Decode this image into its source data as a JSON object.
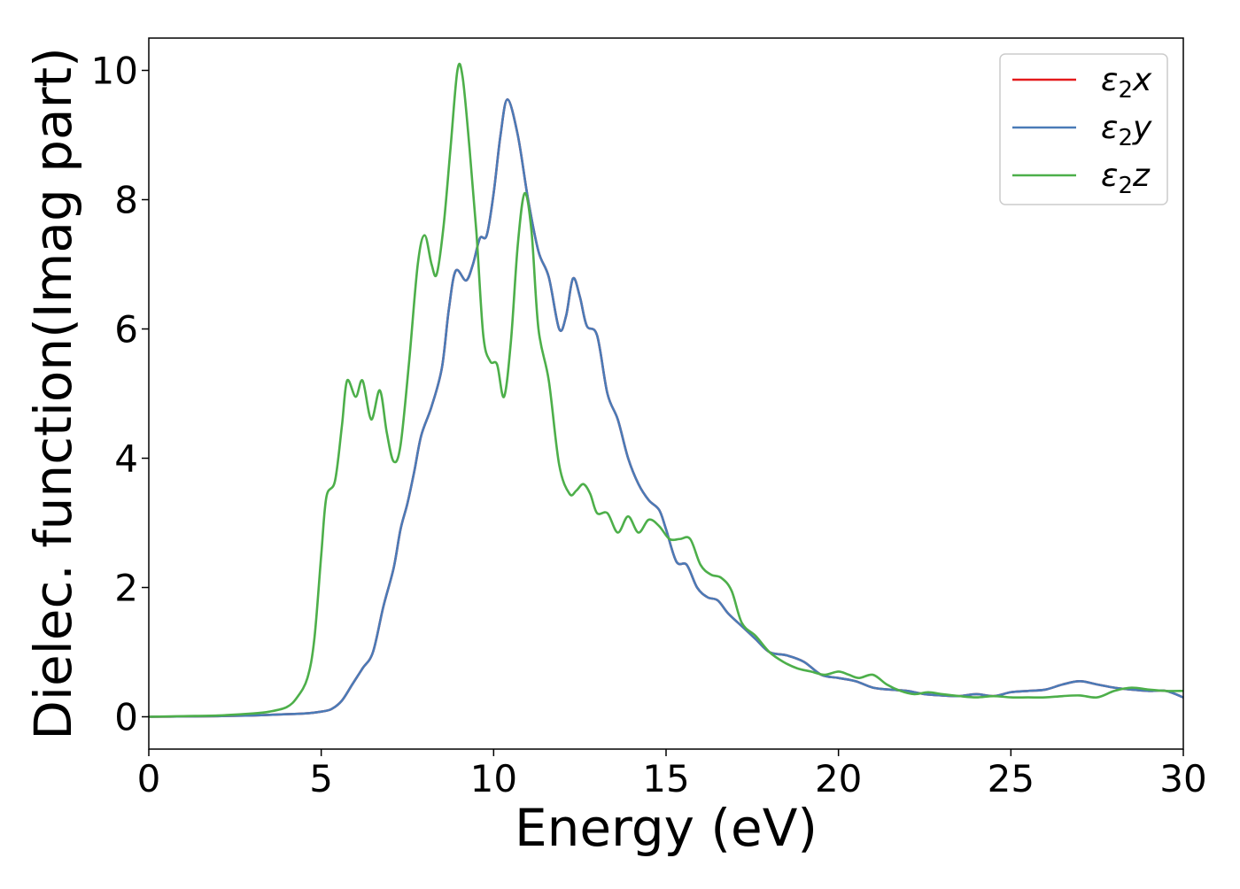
{
  "chart_data": {
    "type": "line",
    "title": "",
    "xlabel": "Energy (eV)",
    "ylabel": "Dielec. function(Imag part)",
    "xlim": [
      0,
      30
    ],
    "ylim": [
      -0.5,
      10.5
    ],
    "xticks": [
      0,
      5,
      10,
      15,
      20,
      25,
      30
    ],
    "yticks": [
      0,
      2,
      4,
      6,
      8,
      10
    ],
    "grid": false,
    "legend_placement": "top-right",
    "series": [
      {
        "name": "ε₂x",
        "legend_main": "ε",
        "legend_sub": "2",
        "legend_tail": "x",
        "color": "#e41a1c",
        "points": [
          [
            0,
            0
          ],
          [
            1,
            0.005
          ],
          [
            2,
            0.01
          ],
          [
            3,
            0.02
          ],
          [
            4,
            0.04
          ],
          [
            4.5,
            0.05
          ],
          [
            5,
            0.08
          ],
          [
            5.3,
            0.12
          ],
          [
            5.6,
            0.25
          ],
          [
            5.9,
            0.5
          ],
          [
            6.2,
            0.75
          ],
          [
            6.5,
            1.0
          ],
          [
            6.8,
            1.7
          ],
          [
            7.1,
            2.3
          ],
          [
            7.3,
            2.9
          ],
          [
            7.5,
            3.3
          ],
          [
            7.7,
            3.8
          ],
          [
            7.9,
            4.35
          ],
          [
            8.2,
            4.8
          ],
          [
            8.5,
            5.4
          ],
          [
            8.7,
            6.3
          ],
          [
            8.9,
            6.9
          ],
          [
            9.2,
            6.75
          ],
          [
            9.4,
            7.0
          ],
          [
            9.6,
            7.4
          ],
          [
            9.8,
            7.45
          ],
          [
            10.0,
            8.1
          ],
          [
            10.2,
            9.0
          ],
          [
            10.4,
            9.55
          ],
          [
            10.7,
            9.0
          ],
          [
            11.0,
            8.0
          ],
          [
            11.3,
            7.2
          ],
          [
            11.6,
            6.8
          ],
          [
            11.9,
            6.0
          ],
          [
            12.1,
            6.2
          ],
          [
            12.3,
            6.78
          ],
          [
            12.5,
            6.5
          ],
          [
            12.7,
            6.05
          ],
          [
            13.0,
            5.9
          ],
          [
            13.3,
            5.0
          ],
          [
            13.6,
            4.6
          ],
          [
            13.9,
            4.0
          ],
          [
            14.2,
            3.6
          ],
          [
            14.5,
            3.35
          ],
          [
            14.8,
            3.2
          ],
          [
            15.0,
            2.9
          ],
          [
            15.3,
            2.4
          ],
          [
            15.6,
            2.35
          ],
          [
            15.9,
            2.0
          ],
          [
            16.2,
            1.85
          ],
          [
            16.5,
            1.8
          ],
          [
            16.8,
            1.6
          ],
          [
            17.2,
            1.4
          ],
          [
            17.6,
            1.2
          ],
          [
            18.0,
            1.0
          ],
          [
            18.5,
            0.95
          ],
          [
            19.0,
            0.85
          ],
          [
            19.5,
            0.65
          ],
          [
            20.0,
            0.6
          ],
          [
            20.5,
            0.55
          ],
          [
            21.0,
            0.45
          ],
          [
            21.5,
            0.42
          ],
          [
            22.0,
            0.4
          ],
          [
            22.5,
            0.35
          ],
          [
            23.0,
            0.33
          ],
          [
            23.5,
            0.32
          ],
          [
            24.0,
            0.35
          ],
          [
            24.5,
            0.32
          ],
          [
            25.0,
            0.38
          ],
          [
            25.5,
            0.4
          ],
          [
            26.0,
            0.42
          ],
          [
            26.5,
            0.5
          ],
          [
            27.0,
            0.55
          ],
          [
            27.5,
            0.5
          ],
          [
            28.0,
            0.45
          ],
          [
            28.5,
            0.42
          ],
          [
            29.0,
            0.4
          ],
          [
            29.5,
            0.4
          ],
          [
            30.0,
            0.3
          ]
        ]
      },
      {
        "name": "ε₂y",
        "legend_main": "ε",
        "legend_sub": "2",
        "legend_tail": "y",
        "color": "#4a7bb7",
        "points": [
          [
            0,
            0
          ],
          [
            1,
            0.005
          ],
          [
            2,
            0.01
          ],
          [
            3,
            0.02
          ],
          [
            4,
            0.04
          ],
          [
            4.5,
            0.05
          ],
          [
            5,
            0.08
          ],
          [
            5.3,
            0.12
          ],
          [
            5.6,
            0.25
          ],
          [
            5.9,
            0.5
          ],
          [
            6.2,
            0.75
          ],
          [
            6.5,
            1.0
          ],
          [
            6.8,
            1.7
          ],
          [
            7.1,
            2.3
          ],
          [
            7.3,
            2.9
          ],
          [
            7.5,
            3.3
          ],
          [
            7.7,
            3.8
          ],
          [
            7.9,
            4.35
          ],
          [
            8.2,
            4.8
          ],
          [
            8.5,
            5.4
          ],
          [
            8.7,
            6.3
          ],
          [
            8.9,
            6.9
          ],
          [
            9.2,
            6.75
          ],
          [
            9.4,
            7.0
          ],
          [
            9.6,
            7.4
          ],
          [
            9.8,
            7.45
          ],
          [
            10.0,
            8.1
          ],
          [
            10.2,
            9.0
          ],
          [
            10.4,
            9.55
          ],
          [
            10.7,
            9.0
          ],
          [
            11.0,
            8.0
          ],
          [
            11.3,
            7.2
          ],
          [
            11.6,
            6.8
          ],
          [
            11.9,
            6.0
          ],
          [
            12.1,
            6.2
          ],
          [
            12.3,
            6.78
          ],
          [
            12.5,
            6.5
          ],
          [
            12.7,
            6.05
          ],
          [
            13.0,
            5.9
          ],
          [
            13.3,
            5.0
          ],
          [
            13.6,
            4.6
          ],
          [
            13.9,
            4.0
          ],
          [
            14.2,
            3.6
          ],
          [
            14.5,
            3.35
          ],
          [
            14.8,
            3.2
          ],
          [
            15.0,
            2.9
          ],
          [
            15.3,
            2.4
          ],
          [
            15.6,
            2.35
          ],
          [
            15.9,
            2.0
          ],
          [
            16.2,
            1.85
          ],
          [
            16.5,
            1.8
          ],
          [
            16.8,
            1.6
          ],
          [
            17.2,
            1.4
          ],
          [
            17.6,
            1.2
          ],
          [
            18.0,
            1.0
          ],
          [
            18.5,
            0.95
          ],
          [
            19.0,
            0.85
          ],
          [
            19.5,
            0.65
          ],
          [
            20.0,
            0.6
          ],
          [
            20.5,
            0.55
          ],
          [
            21.0,
            0.45
          ],
          [
            21.5,
            0.42
          ],
          [
            22.0,
            0.4
          ],
          [
            22.5,
            0.35
          ],
          [
            23.0,
            0.33
          ],
          [
            23.5,
            0.32
          ],
          [
            24.0,
            0.35
          ],
          [
            24.5,
            0.32
          ],
          [
            25.0,
            0.38
          ],
          [
            25.5,
            0.4
          ],
          [
            26.0,
            0.42
          ],
          [
            26.5,
            0.5
          ],
          [
            27.0,
            0.55
          ],
          [
            27.5,
            0.5
          ],
          [
            28.0,
            0.45
          ],
          [
            28.5,
            0.42
          ],
          [
            29.0,
            0.4
          ],
          [
            29.5,
            0.4
          ],
          [
            30.0,
            0.3
          ]
        ]
      },
      {
        "name": "ε₂z",
        "legend_main": "ε",
        "legend_sub": "2",
        "legend_tail": "z",
        "color": "#4daf4a",
        "points": [
          [
            0,
            0
          ],
          [
            1,
            0.01
          ],
          [
            2,
            0.02
          ],
          [
            3,
            0.05
          ],
          [
            3.5,
            0.08
          ],
          [
            4.0,
            0.15
          ],
          [
            4.3,
            0.3
          ],
          [
            4.6,
            0.6
          ],
          [
            4.8,
            1.2
          ],
          [
            5.0,
            2.5
          ],
          [
            5.15,
            3.4
          ],
          [
            5.4,
            3.65
          ],
          [
            5.6,
            4.5
          ],
          [
            5.75,
            5.2
          ],
          [
            6.0,
            4.95
          ],
          [
            6.2,
            5.2
          ],
          [
            6.45,
            4.6
          ],
          [
            6.7,
            5.05
          ],
          [
            6.9,
            4.4
          ],
          [
            7.1,
            3.95
          ],
          [
            7.3,
            4.2
          ],
          [
            7.55,
            5.5
          ],
          [
            7.8,
            7.0
          ],
          [
            8.0,
            7.45
          ],
          [
            8.2,
            7.0
          ],
          [
            8.35,
            6.85
          ],
          [
            8.55,
            7.6
          ],
          [
            8.75,
            8.8
          ],
          [
            8.95,
            10.0
          ],
          [
            9.1,
            9.9
          ],
          [
            9.3,
            8.8
          ],
          [
            9.5,
            7.5
          ],
          [
            9.7,
            5.9
          ],
          [
            9.9,
            5.5
          ],
          [
            10.1,
            5.45
          ],
          [
            10.3,
            4.95
          ],
          [
            10.5,
            5.8
          ],
          [
            10.7,
            7.3
          ],
          [
            10.9,
            8.1
          ],
          [
            11.1,
            7.5
          ],
          [
            11.3,
            6.0
          ],
          [
            11.6,
            5.2
          ],
          [
            11.9,
            3.9
          ],
          [
            12.2,
            3.45
          ],
          [
            12.4,
            3.5
          ],
          [
            12.6,
            3.6
          ],
          [
            12.8,
            3.45
          ],
          [
            13.0,
            3.15
          ],
          [
            13.3,
            3.15
          ],
          [
            13.6,
            2.85
          ],
          [
            13.9,
            3.1
          ],
          [
            14.2,
            2.85
          ],
          [
            14.5,
            3.05
          ],
          [
            14.8,
            2.95
          ],
          [
            15.1,
            2.75
          ],
          [
            15.4,
            2.75
          ],
          [
            15.7,
            2.75
          ],
          [
            16.0,
            2.35
          ],
          [
            16.3,
            2.2
          ],
          [
            16.6,
            2.15
          ],
          [
            16.9,
            1.95
          ],
          [
            17.2,
            1.45
          ],
          [
            17.6,
            1.25
          ],
          [
            18.0,
            1.0
          ],
          [
            18.4,
            0.85
          ],
          [
            18.8,
            0.75
          ],
          [
            19.2,
            0.7
          ],
          [
            19.6,
            0.65
          ],
          [
            20.0,
            0.7
          ],
          [
            20.3,
            0.65
          ],
          [
            20.6,
            0.6
          ],
          [
            21.0,
            0.65
          ],
          [
            21.4,
            0.5
          ],
          [
            21.8,
            0.4
          ],
          [
            22.2,
            0.35
          ],
          [
            22.6,
            0.38
          ],
          [
            23.0,
            0.35
          ],
          [
            23.5,
            0.32
          ],
          [
            24.0,
            0.3
          ],
          [
            24.5,
            0.32
          ],
          [
            25.0,
            0.3
          ],
          [
            25.5,
            0.3
          ],
          [
            26.0,
            0.3
          ],
          [
            26.5,
            0.32
          ],
          [
            27.0,
            0.33
          ],
          [
            27.5,
            0.3
          ],
          [
            28.0,
            0.4
          ],
          [
            28.5,
            0.45
          ],
          [
            29.0,
            0.42
          ],
          [
            29.5,
            0.4
          ],
          [
            30.0,
            0.4
          ]
        ]
      }
    ]
  }
}
